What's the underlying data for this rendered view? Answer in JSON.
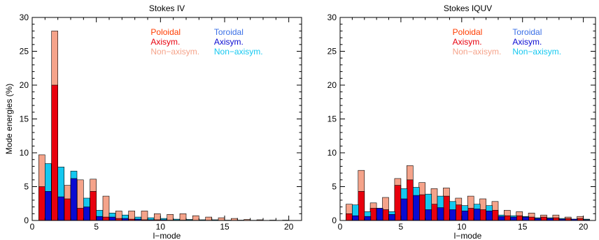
{
  "colors": {
    "poloidal": "#ff3c00",
    "poloidal_axisym": "#e8000e",
    "poloidal_nonaxisym": "#f5a38a",
    "toroidal": "#3a6fe6",
    "toroidal_axisym": "#0a0ad2",
    "toroidal_nonaxisym": "#14c8f0",
    "axes": "#000000"
  },
  "legend": {
    "poloidal": "Poloidal",
    "toroidal": "Toroidal",
    "axisym": "Axisym.",
    "nonaxisym": "Non−axisym."
  },
  "chart_data": [
    {
      "type": "bar",
      "title": "Stokes IV",
      "xlabel": "l−mode",
      "ylabel": "Mode energies (%)",
      "xlim": [
        0,
        21
      ],
      "ylim": [
        0,
        30
      ],
      "xticks": [
        0,
        5,
        10,
        15,
        20
      ],
      "yticks": [
        0,
        5,
        10,
        15,
        20,
        25,
        30
      ],
      "grid": false,
      "legend_position": "top-right",
      "x": [
        1,
        2,
        3,
        4,
        5,
        6,
        7,
        8,
        9,
        10,
        11,
        12,
        13,
        14,
        15,
        16,
        17,
        18,
        19,
        20
      ],
      "series": [
        {
          "name": "Poloidal Axisym.",
          "group": "poloidal",
          "part": "axisym",
          "values": [
            5.0,
            20.0,
            3.2,
            1.8,
            4.3,
            0.5,
            0.3,
            0.2,
            0.1,
            0.1,
            0.05,
            0.05,
            0.03,
            0.03,
            0.02,
            0.02,
            0.01,
            0.01,
            0.01,
            0.01
          ]
        },
        {
          "name": "Poloidal Non−axisym.",
          "group": "poloidal",
          "part": "total",
          "values": [
            9.7,
            28.0,
            5.2,
            6.0,
            6.1,
            3.6,
            1.4,
            1.4,
            1.4,
            1.0,
            0.9,
            1.0,
            0.7,
            0.5,
            0.4,
            0.3,
            0.15,
            0.1,
            0.05,
            0.05
          ]
        },
        {
          "name": "Toroidal Axisym.",
          "group": "toroidal",
          "part": "axisym",
          "values": [
            4.3,
            3.5,
            6.2,
            2.0,
            0.6,
            0.5,
            0.3,
            0.2,
            0.1,
            0.1,
            0.05,
            0.05,
            0.03,
            0.03,
            0.02,
            0.02,
            0.01,
            0.01,
            0.01,
            0.01
          ]
        },
        {
          "name": "Toroidal Non−axisym.",
          "group": "toroidal",
          "part": "total",
          "values": [
            8.4,
            7.9,
            7.3,
            3.3,
            1.5,
            1.1,
            0.8,
            0.5,
            0.4,
            0.3,
            0.2,
            0.15,
            0.1,
            0.1,
            0.05,
            0.05,
            0.03,
            0.02,
            0.01,
            0.01
          ]
        }
      ]
    },
    {
      "type": "bar",
      "title": "Stokes IQUV",
      "xlabel": "l−mode",
      "ylabel": "",
      "xlim": [
        0,
        21
      ],
      "ylim": [
        0,
        30
      ],
      "xticks": [
        0,
        5,
        10,
        15,
        20
      ],
      "yticks": [
        0,
        5,
        10,
        15,
        20,
        25,
        30
      ],
      "grid": false,
      "legend_position": "top-right",
      "x": [
        1,
        2,
        3,
        4,
        5,
        6,
        7,
        8,
        9,
        10,
        11,
        12,
        13,
        14,
        15,
        16,
        17,
        18,
        19,
        20
      ],
      "series": [
        {
          "name": "Poloidal Axisym.",
          "group": "poloidal",
          "part": "axisym",
          "values": [
            1.0,
            4.3,
            1.8,
            1.6,
            5.2,
            6.0,
            3.8,
            2.4,
            3.6,
            2.3,
            1.8,
            1.6,
            1.5,
            0.7,
            0.7,
            0.5,
            0.5,
            0.4,
            0.3,
            0.3
          ]
        },
        {
          "name": "Poloidal Non−axisym.",
          "group": "poloidal",
          "part": "total",
          "values": [
            2.4,
            7.4,
            2.6,
            3.4,
            6.2,
            8.1,
            5.6,
            4.7,
            4.8,
            3.3,
            3.6,
            3.2,
            2.8,
            1.5,
            1.3,
            1.1,
            0.8,
            0.8,
            0.5,
            0.6
          ]
        },
        {
          "name": "Toroidal Axisym.",
          "group": "toroidal",
          "part": "axisym",
          "values": [
            0.7,
            0.6,
            1.8,
            0.9,
            3.2,
            3.7,
            1.6,
            1.9,
            1.6,
            1.4,
            1.7,
            1.4,
            0.6,
            0.5,
            0.5,
            0.3,
            0.3,
            0.2,
            0.2,
            0.1
          ]
        },
        {
          "name": "Toroidal Non−axisym.",
          "group": "toroidal",
          "part": "total",
          "values": [
            2.3,
            1.3,
            1.8,
            1.3,
            4.7,
            4.9,
            3.9,
            3.6,
            2.8,
            2.2,
            2.4,
            2.2,
            0.8,
            0.7,
            0.6,
            0.4,
            0.4,
            0.3,
            0.2,
            0.2
          ]
        }
      ]
    }
  ]
}
